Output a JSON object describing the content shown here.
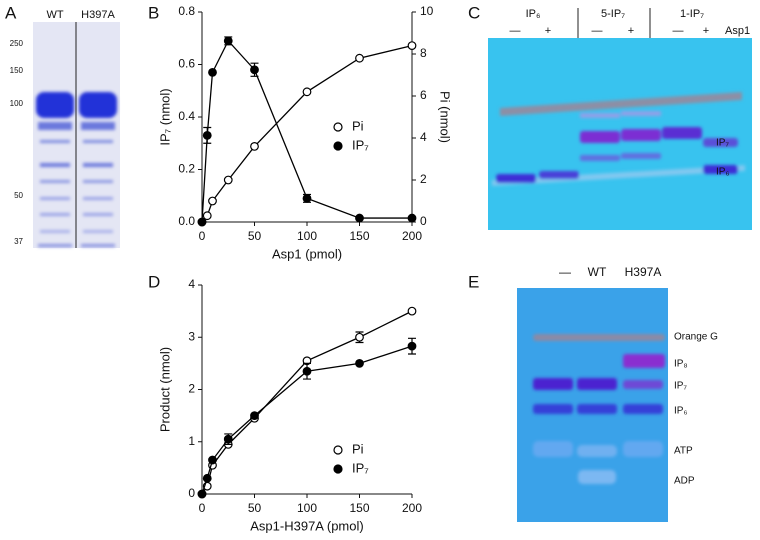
{
  "figure": {
    "panels": [
      "A",
      "B",
      "C",
      "D",
      "E"
    ]
  },
  "gel_a": {
    "lanes": [
      "WT",
      "H397A"
    ],
    "markers": [
      250,
      150,
      100,
      50,
      37
    ]
  },
  "gel_c": {
    "groups": [
      "IP₆",
      "5-IP₇",
      "1-IP₇"
    ],
    "treatment": "Asp1",
    "signs": [
      "—",
      "+",
      "—",
      "+",
      "—",
      "+"
    ],
    "bands": [
      "IP₇",
      "IP₆"
    ]
  },
  "gel_e": {
    "lanes": [
      "—",
      "WT",
      "H397A"
    ],
    "bands": [
      "Orange G",
      "IP₈",
      "IP₇",
      "IP₆",
      "ATP",
      "ADP"
    ]
  },
  "chart_data": [
    {
      "type": "line",
      "xlabel": "Asp1 (pmol)",
      "ylabel": "IP₇ (nmol)",
      "y2label": "Pi (nmol)",
      "x": [
        0,
        5,
        10,
        25,
        50,
        100,
        150,
        200
      ],
      "xlim": [
        0,
        200
      ],
      "xticks": [
        0,
        50,
        100,
        150,
        200
      ],
      "ylim": [
        0,
        0.8
      ],
      "yticks": [
        {
          "value": 0,
          "label": "0.0"
        },
        0.2,
        0.4,
        0.6,
        0.8
      ],
      "y2lim": [
        0,
        10
      ],
      "y2ticks": [
        0,
        2,
        4,
        6,
        8,
        10
      ],
      "series": [
        {
          "name": "Pi",
          "color": "#000000",
          "marker": "open",
          "axis": "y2",
          "values": [
            0,
            0.3,
            1,
            2,
            3.6,
            6.2,
            7.8,
            8.4
          ]
        },
        {
          "name": "IP₇",
          "color": "#000000",
          "marker": "filled",
          "axis": "y",
          "values": [
            0,
            0.33,
            0.57,
            0.69,
            0.58,
            0.09,
            0.015,
            0.015
          ],
          "errors": [
            null,
            0.03,
            null,
            0.015,
            0.025,
            0.015,
            null,
            null
          ]
        }
      ]
    },
    {
      "type": "line",
      "xlabel": "Asp1-H397A (pmol)",
      "ylabel": "Product (nmol)",
      "x": [
        0,
        5,
        10,
        25,
        50,
        100,
        150,
        200
      ],
      "xlim": [
        0,
        200
      ],
      "xticks": [
        0,
        50,
        100,
        150,
        200
      ],
      "ylim": [
        0,
        4
      ],
      "yticks": [
        0,
        1,
        2,
        3,
        4
      ],
      "series": [
        {
          "name": "Pi",
          "color": "#000000",
          "marker": "open",
          "axis": "y",
          "values": [
            0,
            0.15,
            0.55,
            0.95,
            1.45,
            2.55,
            3.0,
            3.5
          ],
          "errors": [
            null,
            null,
            null,
            null,
            null,
            null,
            0.1,
            null
          ]
        },
        {
          "name": "IP₇",
          "color": "#000000",
          "marker": "filled",
          "axis": "y",
          "values": [
            0,
            0.3,
            0.65,
            1.05,
            1.5,
            2.35,
            2.5,
            2.83
          ],
          "errors": [
            null,
            null,
            null,
            0.1,
            null,
            0.15,
            null,
            0.15
          ]
        }
      ]
    }
  ]
}
